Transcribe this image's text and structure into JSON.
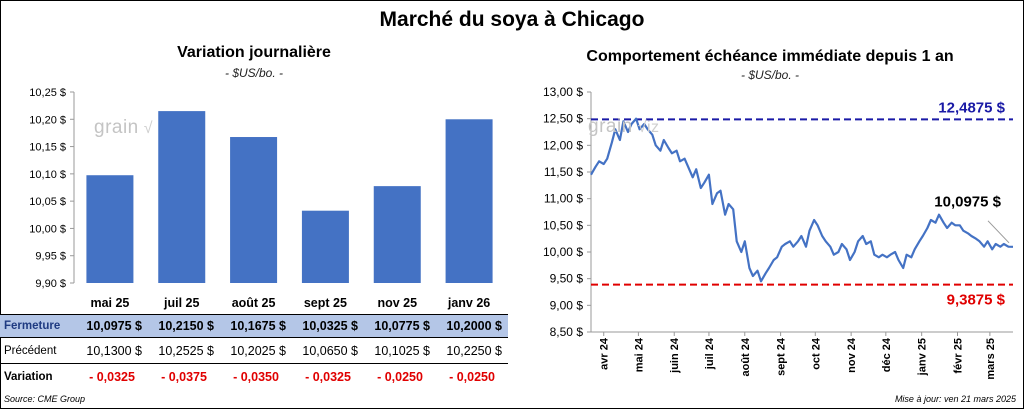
{
  "title": "Marché du soya à Chicago",
  "left": {
    "title": "Variation journalière",
    "unit": "- $US/bo. -",
    "row_labels": {
      "close": "Fermeture",
      "prev": "Précédent",
      "var": "Variation"
    },
    "close_values": [
      "10,0975  $",
      "10,2150  $",
      "10,1675  $",
      "10,0325  $",
      "10,0775  $",
      "10,2000  $"
    ],
    "prev_values": [
      "10,1300  $",
      "10,2525  $",
      "10,2025  $",
      "10,0650  $",
      "10,1025  $",
      "10,2250  $"
    ],
    "var_values": [
      "- 0,0325",
      "- 0,0375",
      "- 0,0350",
      "- 0,0325",
      "- 0,0250",
      "- 0,0250"
    ]
  },
  "right": {
    "title": "Comportement  échéance immédiate depuis 1 an",
    "unit": "- $US/bo. -",
    "high_label": "12,4875 $",
    "low_label": "9,3875 $",
    "last_label": "10,0975 $"
  },
  "watermark": "grain",
  "footer": {
    "source": "Source: CME Group",
    "updated": "Mise à jour: ven 21 mars 2025"
  },
  "colors": {
    "bar": "#4472c4",
    "line": "#4472c4",
    "high": "#1a1aa6",
    "low": "#e00000",
    "table_header": "#b4c6e7"
  },
  "chart_data": [
    {
      "type": "bar",
      "title": "Variation journalière",
      "categories": [
        "mai 25",
        "juil 25",
        "août 25",
        "sept 25",
        "nov 25",
        "janv 26"
      ],
      "values": [
        10.0975,
        10.215,
        10.1675,
        10.0325,
        10.0775,
        10.2
      ],
      "ylim": [
        9.9,
        10.25
      ],
      "yticks": [
        9.9,
        9.95,
        10.0,
        10.05,
        10.1,
        10.15,
        10.2,
        10.25
      ],
      "ytick_labels": [
        "9,90 $",
        "9,95 $",
        "10,00 $",
        "10,05 $",
        "10,10 $",
        "10,15 $",
        "10,20 $",
        "10,25 $"
      ],
      "grid": false
    },
    {
      "type": "line",
      "title": "Comportement  échéance immédiate depuis 1 an",
      "x_start": "2024-03-21",
      "x_end": "2025-03-21",
      "x_tick_labels": [
        "avr 24",
        "mai 24",
        "juin 24",
        "juil 24",
        "août 24",
        "sept 24",
        "oct 24",
        "nov 24",
        "déc 24",
        "janv 25",
        "févr 25",
        "mars 25"
      ],
      "x_tick_dates": [
        "2024-04-01",
        "2024-05-01",
        "2024-06-01",
        "2024-07-01",
        "2024-08-01",
        "2024-09-01",
        "2024-10-01",
        "2024-11-01",
        "2024-12-01",
        "2025-01-01",
        "2025-02-01",
        "2025-03-01"
      ],
      "ylim": [
        8.5,
        13.0
      ],
      "yticks": [
        8.5,
        9.0,
        9.5,
        10.0,
        10.5,
        11.0,
        11.5,
        12.0,
        12.5,
        13.0
      ],
      "ytick_labels": [
        "8,50 $",
        "9,00 $",
        "9,50 $",
        "10,00 $",
        "10,50 $",
        "11,00 $",
        "11,50 $",
        "12,00 $",
        "12,50 $",
        "13,00 $"
      ],
      "reference_lines": [
        {
          "name": "high",
          "value": 12.4875
        },
        {
          "name": "low",
          "value": 9.3875
        }
      ],
      "last_value": 10.0975,
      "series": [
        {
          "x": [
            "2024-03-21",
            "2024-03-25",
            "2024-03-28",
            "2024-04-01",
            "2024-04-04",
            "2024-04-08",
            "2024-04-11",
            "2024-04-15",
            "2024-04-18",
            "2024-04-22",
            "2024-04-25",
            "2024-04-29",
            "2024-05-02",
            "2024-05-06",
            "2024-05-09",
            "2024-05-13",
            "2024-05-16",
            "2024-05-20",
            "2024-05-23",
            "2024-05-27",
            "2024-05-30",
            "2024-06-03",
            "2024-06-06",
            "2024-06-10",
            "2024-06-13",
            "2024-06-17",
            "2024-06-20",
            "2024-06-24",
            "2024-06-27",
            "2024-07-01",
            "2024-07-04",
            "2024-07-08",
            "2024-07-11",
            "2024-07-15",
            "2024-07-18",
            "2024-07-22",
            "2024-07-25",
            "2024-07-29",
            "2024-08-01",
            "2024-08-05",
            "2024-08-08",
            "2024-08-12",
            "2024-08-15",
            "2024-08-19",
            "2024-08-22",
            "2024-08-26",
            "2024-08-29",
            "2024-09-02",
            "2024-09-05",
            "2024-09-09",
            "2024-09-12",
            "2024-09-16",
            "2024-09-19",
            "2024-09-23",
            "2024-09-26",
            "2024-09-30",
            "2024-10-03",
            "2024-10-07",
            "2024-10-10",
            "2024-10-14",
            "2024-10-17",
            "2024-10-21",
            "2024-10-24",
            "2024-10-28",
            "2024-10-31",
            "2024-11-04",
            "2024-11-07",
            "2024-11-11",
            "2024-11-14",
            "2024-11-18",
            "2024-11-21",
            "2024-11-25",
            "2024-11-28",
            "2024-12-02",
            "2024-12-05",
            "2024-12-09",
            "2024-12-12",
            "2024-12-16",
            "2024-12-19",
            "2024-12-23",
            "2024-12-26",
            "2024-12-30",
            "2025-01-02",
            "2025-01-06",
            "2025-01-09",
            "2025-01-13",
            "2025-01-16",
            "2025-01-20",
            "2025-01-23",
            "2025-01-27",
            "2025-01-30",
            "2025-02-03",
            "2025-02-06",
            "2025-02-10",
            "2025-02-13",
            "2025-02-17",
            "2025-02-20",
            "2025-02-24",
            "2025-02-27",
            "2025-03-03",
            "2025-03-06",
            "2025-03-10",
            "2025-03-13",
            "2025-03-17",
            "2025-03-21"
          ],
          "y": [
            11.45,
            11.6,
            11.7,
            11.65,
            11.75,
            12.05,
            12.3,
            12.1,
            12.45,
            12.25,
            12.4,
            12.5,
            12.3,
            12.4,
            12.3,
            12.2,
            12.0,
            11.9,
            12.1,
            11.95,
            11.85,
            11.9,
            11.7,
            11.75,
            11.6,
            11.4,
            11.55,
            11.2,
            11.3,
            11.45,
            10.9,
            11.1,
            11.15,
            10.7,
            10.9,
            10.8,
            10.2,
            10.0,
            10.2,
            9.7,
            9.55,
            9.65,
            9.45,
            9.6,
            9.7,
            9.85,
            9.9,
            10.1,
            10.15,
            10.2,
            10.1,
            10.2,
            10.3,
            10.1,
            10.4,
            10.6,
            10.5,
            10.3,
            10.2,
            10.1,
            9.95,
            10.0,
            10.15,
            10.05,
            9.85,
            10.0,
            10.2,
            10.3,
            10.15,
            10.2,
            9.95,
            9.9,
            9.95,
            9.9,
            9.95,
            10.0,
            9.85,
            9.7,
            9.95,
            9.9,
            10.05,
            10.2,
            10.3,
            10.45,
            10.6,
            10.55,
            10.7,
            10.55,
            10.45,
            10.55,
            10.5,
            10.5,
            10.4,
            10.35,
            10.3,
            10.25,
            10.2,
            10.1,
            10.2,
            10.05,
            10.15,
            10.1,
            10.15,
            10.1,
            10.0975
          ]
        }
      ]
    }
  ]
}
